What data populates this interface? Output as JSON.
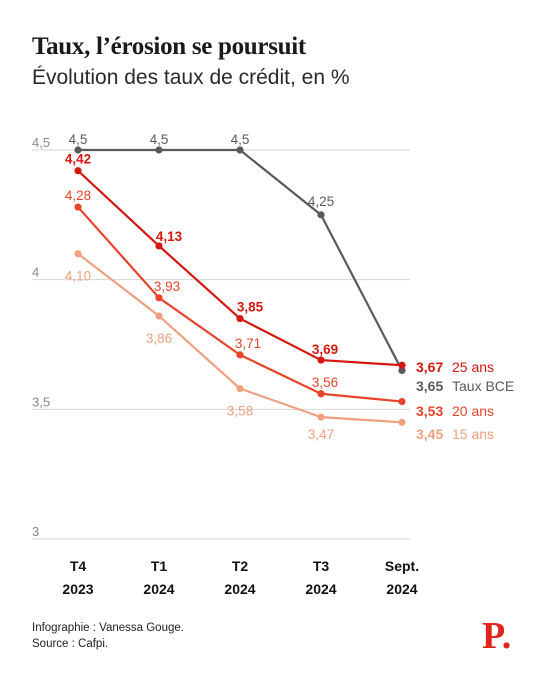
{
  "header": {
    "title": "Taux, l’érosion se poursuit",
    "subtitle": "Évolution des taux de crédit, en %"
  },
  "footer": {
    "infographie": "Infographie : Vanessa Gouge.",
    "source": "Source : Cafpi.",
    "logo": "P."
  },
  "chart_data": {
    "type": "line",
    "categories": [
      [
        "T4",
        "2023"
      ],
      [
        "T1",
        "2024"
      ],
      [
        "T2",
        "2024"
      ],
      [
        "T3",
        "2024"
      ],
      [
        "Sept.",
        "2024"
      ]
    ],
    "ylim": [
      3,
      4.5
    ],
    "yticks": [
      {
        "value": 4.5,
        "label": "4,5"
      },
      {
        "value": 4,
        "label": "4"
      },
      {
        "value": 3.5,
        "label": "3,5"
      },
      {
        "value": 3,
        "label": "3"
      }
    ],
    "grid": true,
    "series": [
      {
        "name": "Taux BCE",
        "color": "#5a5a5a",
        "values": [
          4.5,
          4.5,
          4.5,
          4.25,
          3.65
        ],
        "labels": [
          "4,5",
          "4,5",
          "4,5",
          "4,25",
          "3,65"
        ]
      },
      {
        "name": "25 ans",
        "color": "#d4170f",
        "values": [
          4.42,
          4.13,
          3.85,
          3.69,
          3.67
        ],
        "labels": [
          "4,42",
          "4,13",
          "3,85",
          "3,69",
          "3,67"
        ]
      },
      {
        "name": "20 ans",
        "color": "#e8442b",
        "values": [
          4.28,
          3.93,
          3.71,
          3.56,
          3.53
        ],
        "labels": [
          "4,28",
          "3,93",
          "3,71",
          "3,56",
          "3,53"
        ]
      },
      {
        "name": "15 ans",
        "color": "#f0a07e",
        "values": [
          4.1,
          3.86,
          3.58,
          3.47,
          3.45
        ],
        "labels": [
          "4,10",
          "3,86",
          "3,58",
          "3,47",
          "3,45"
        ]
      }
    ]
  }
}
